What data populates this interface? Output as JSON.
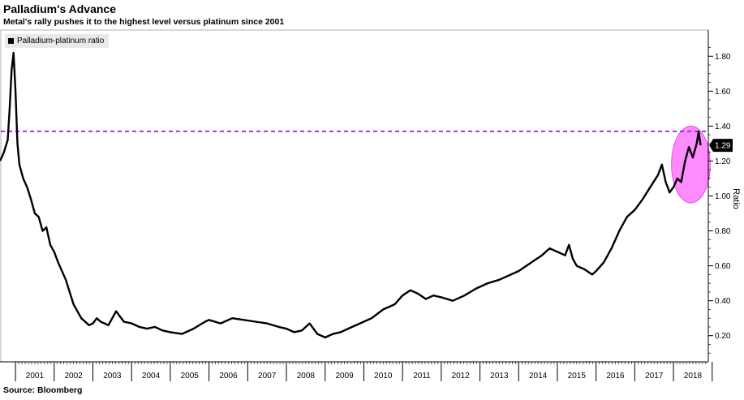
{
  "chart_data": {
    "type": "line",
    "title": "Palladium's Advance",
    "subtitle": "Metal's rally pushes it to the highest level versus platinum since 2001",
    "source": "Source: Bloomberg",
    "ylabel": "Ratio",
    "xlabel": "",
    "legend": {
      "position": "top-left",
      "entries": [
        "Palladium-platinum ratio"
      ]
    },
    "x_range": [
      2000.6,
      2018.9
    ],
    "ylim": [
      0.05,
      1.95
    ],
    "y_ticks": [
      0.2,
      0.4,
      0.6,
      0.8,
      1.0,
      1.2,
      1.4,
      1.6,
      1.8
    ],
    "y_tick_labels": [
      "0.20",
      "0.40",
      "0.60",
      "0.80",
      "1.00",
      "1.20",
      "1.40",
      "1.60",
      "1.80"
    ],
    "x_tick_labels": [
      "2001",
      "2002",
      "2003",
      "2004",
      "2005",
      "2006",
      "2007",
      "2008",
      "2009",
      "2010",
      "2011",
      "2012",
      "2013",
      "2014",
      "2015",
      "2016",
      "2017",
      "2018"
    ],
    "grid": false,
    "reference_line": {
      "value": 1.37,
      "style": "dashed",
      "color": "#9933ff"
    },
    "current_value": {
      "value": 1.29,
      "label": "1.29"
    },
    "highlight": {
      "x_center": 2018.45,
      "y_center": 1.18,
      "x_radius": 0.5,
      "y_radius": 0.22,
      "color": "#ff66ff"
    },
    "series": [
      {
        "name": "Palladium-platinum ratio",
        "color": "#000000",
        "x": [
          2000.6,
          2000.7,
          2000.8,
          2000.85,
          2000.9,
          2000.95,
          2001.0,
          2001.05,
          2001.1,
          2001.2,
          2001.3,
          2001.4,
          2001.5,
          2001.6,
          2001.7,
          2001.8,
          2001.9,
          2002.0,
          2002.1,
          2002.3,
          2002.5,
          2002.7,
          2002.9,
          2003.0,
          2003.1,
          2003.2,
          2003.4,
          2003.6,
          2003.8,
          2004.0,
          2004.2,
          2004.4,
          2004.6,
          2004.8,
          2005.0,
          2005.3,
          2005.6,
          2005.9,
          2006.0,
          2006.3,
          2006.6,
          2006.9,
          2007.2,
          2007.5,
          2007.8,
          2008.0,
          2008.2,
          2008.4,
          2008.6,
          2008.8,
          2009.0,
          2009.2,
          2009.4,
          2009.7,
          2010.0,
          2010.2,
          2010.5,
          2010.8,
          2011.0,
          2011.2,
          2011.4,
          2011.6,
          2011.8,
          2012.0,
          2012.3,
          2012.6,
          2012.9,
          2013.2,
          2013.5,
          2013.8,
          2014.0,
          2014.2,
          2014.4,
          2014.6,
          2014.8,
          2015.0,
          2015.2,
          2015.3,
          2015.4,
          2015.5,
          2015.7,
          2015.9,
          2016.0,
          2016.2,
          2016.4,
          2016.6,
          2016.8,
          2017.0,
          2017.2,
          2017.4,
          2017.6,
          2017.7,
          2017.8,
          2017.9,
          2018.0,
          2018.1,
          2018.2,
          2018.3,
          2018.4,
          2018.5,
          2018.6,
          2018.65,
          2018.7
        ],
        "y": [
          1.2,
          1.25,
          1.32,
          1.5,
          1.72,
          1.82,
          1.6,
          1.3,
          1.18,
          1.1,
          1.05,
          0.98,
          0.9,
          0.88,
          0.8,
          0.82,
          0.72,
          0.68,
          0.62,
          0.52,
          0.38,
          0.3,
          0.26,
          0.27,
          0.3,
          0.28,
          0.26,
          0.34,
          0.28,
          0.27,
          0.25,
          0.24,
          0.25,
          0.23,
          0.22,
          0.21,
          0.24,
          0.28,
          0.29,
          0.27,
          0.3,
          0.29,
          0.28,
          0.27,
          0.25,
          0.24,
          0.22,
          0.23,
          0.27,
          0.21,
          0.19,
          0.21,
          0.22,
          0.25,
          0.28,
          0.3,
          0.35,
          0.38,
          0.43,
          0.46,
          0.44,
          0.41,
          0.43,
          0.42,
          0.4,
          0.43,
          0.47,
          0.5,
          0.52,
          0.55,
          0.57,
          0.6,
          0.63,
          0.66,
          0.7,
          0.68,
          0.66,
          0.72,
          0.64,
          0.6,
          0.58,
          0.55,
          0.57,
          0.62,
          0.7,
          0.8,
          0.88,
          0.92,
          0.98,
          1.05,
          1.12,
          1.18,
          1.08,
          1.02,
          1.05,
          1.1,
          1.08,
          1.2,
          1.28,
          1.22,
          1.3,
          1.37,
          1.29
        ]
      }
    ]
  }
}
